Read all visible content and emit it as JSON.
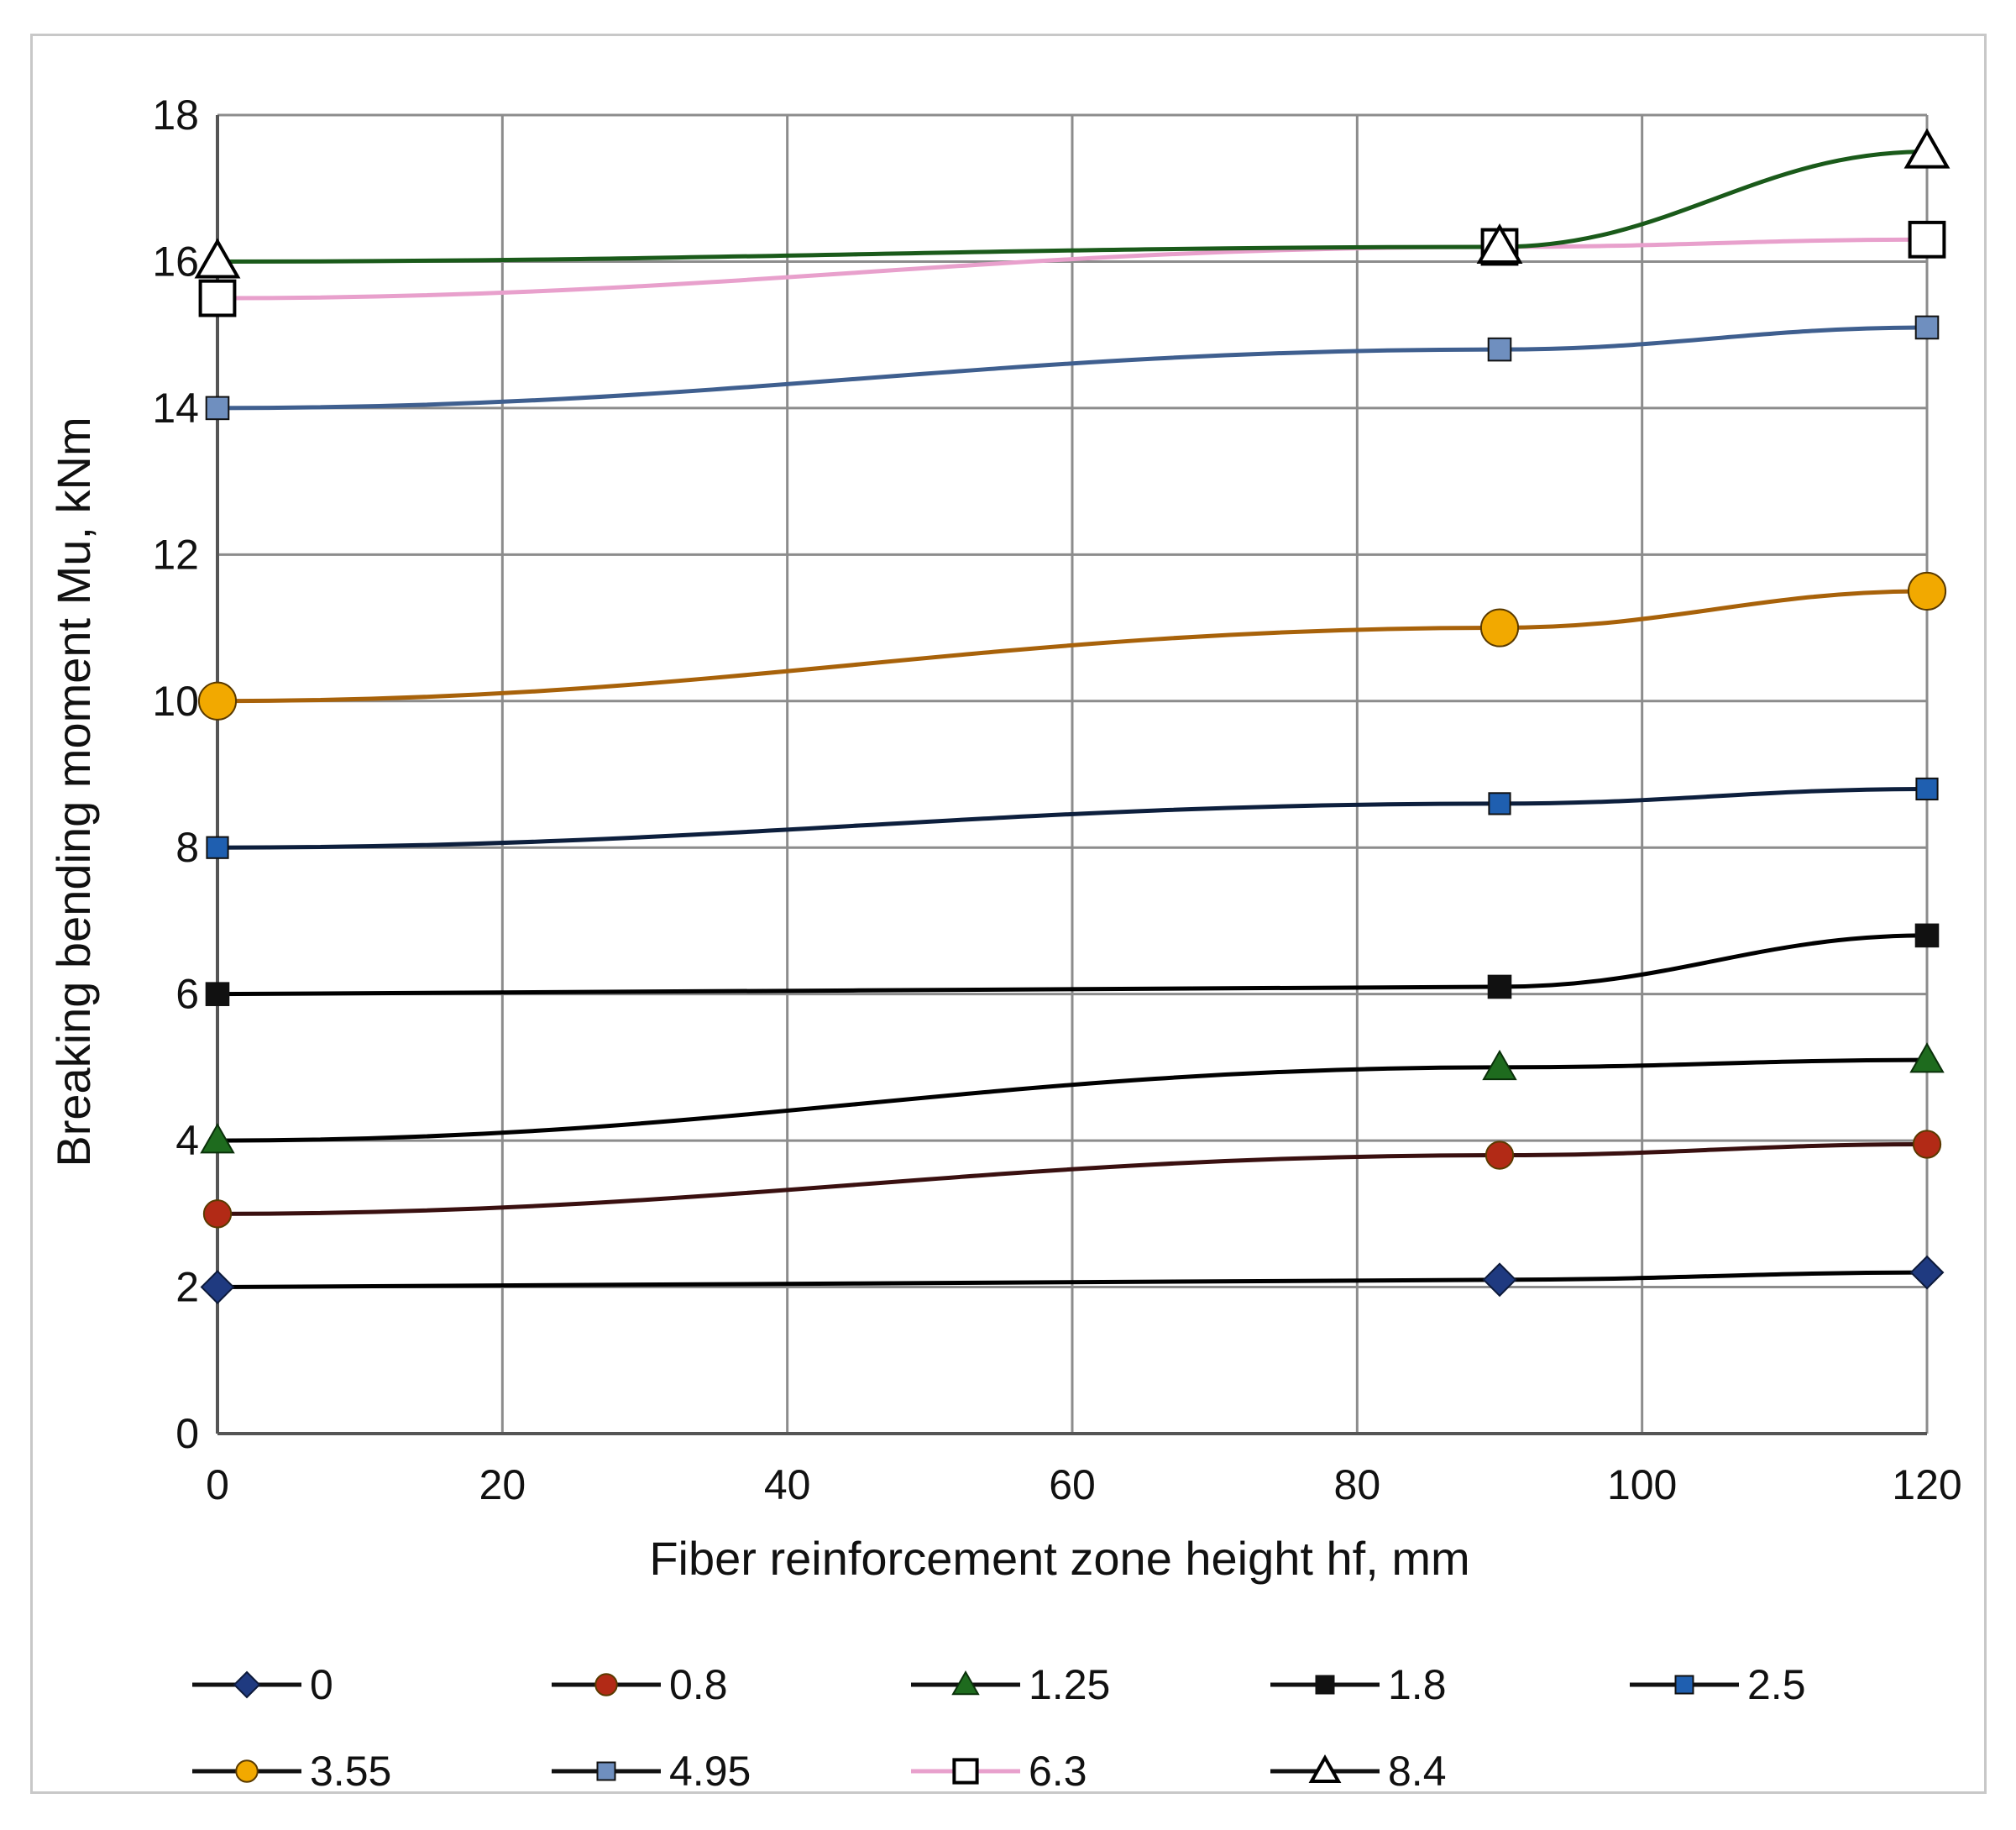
{
  "chart_data": {
    "type": "line",
    "title": "",
    "xlabel": "Fiber reinforcement zone height hf, mm",
    "ylabel": "Breaking bending moment Mu, kNm",
    "xlim": [
      0,
      120
    ],
    "ylim": [
      0,
      18
    ],
    "xticks": [
      0,
      20,
      40,
      60,
      80,
      100,
      120
    ],
    "yticks": [
      0,
      2,
      4,
      6,
      8,
      10,
      12,
      14,
      16,
      18
    ],
    "grid": true,
    "legend_position": "bottom",
    "x": [
      0,
      90,
      120
    ],
    "series": [
      {
        "name": "0",
        "values": [
          2.0,
          2.1,
          2.2
        ],
        "color": "#000000",
        "marker": "diamond",
        "marker_color": "#1f3a80"
      },
      {
        "name": "0.8",
        "values": [
          3.0,
          3.8,
          3.95
        ],
        "color": "#3a1010",
        "marker": "circle",
        "marker_color": "#b22a16"
      },
      {
        "name": "1.25",
        "values": [
          4.0,
          5.0,
          5.1
        ],
        "color": "#000000",
        "marker": "triangle",
        "marker_color": "#1e6b1e"
      },
      {
        "name": "1.8",
        "values": [
          6.0,
          6.1,
          6.8
        ],
        "color": "#000000",
        "marker": "square",
        "marker_color": "#111111"
      },
      {
        "name": "2.5",
        "values": [
          8.0,
          8.6,
          8.8
        ],
        "color": "#0d1f3d",
        "marker": "square",
        "marker_color": "#1f5fb0"
      },
      {
        "name": "3.55",
        "values": [
          10.0,
          11.0,
          11.5
        ],
        "color": "#a8620a",
        "marker": "circle",
        "marker_color": "#f2a900"
      },
      {
        "name": "4.95",
        "values": [
          14.0,
          14.8,
          15.1
        ],
        "color": "#3f5f8f",
        "marker": "square",
        "marker_color": "#6f8fbf"
      },
      {
        "name": "6.3",
        "values": [
          15.5,
          16.2,
          16.3
        ],
        "color": "#e8a0cc",
        "marker": "open-square",
        "marker_color": "#000000"
      },
      {
        "name": "8.4",
        "values": [
          16.0,
          16.2,
          17.5
        ],
        "color": "#1a5a1a",
        "marker": "open-triangle",
        "marker_color": "#000000"
      }
    ]
  }
}
